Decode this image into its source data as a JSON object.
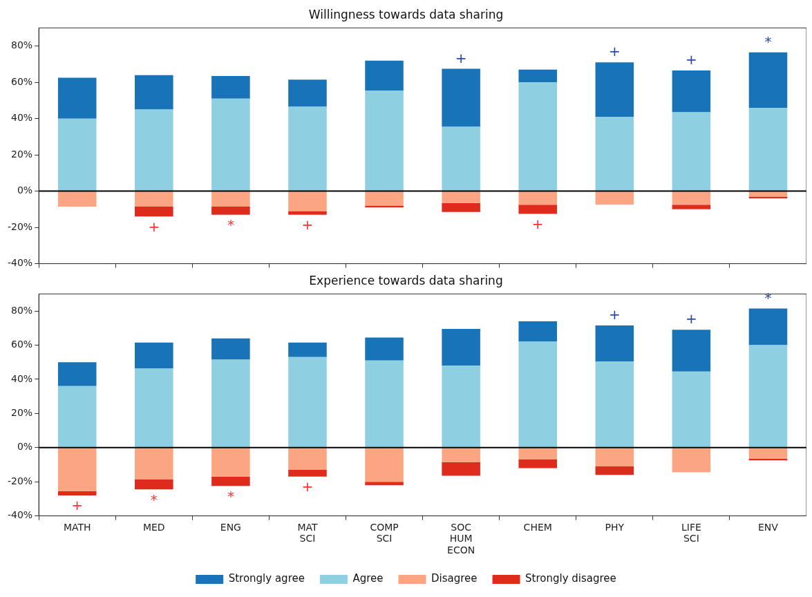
{
  "chart_data": [
    {
      "type": "bar",
      "title": "Willingness towards data sharing",
      "categories": [
        "MATH",
        "MED",
        "ENG",
        "MAT SCI",
        "COMP SCI",
        "SOC HUM ECON",
        "CHEM",
        "PHY",
        "LIFE SCI",
        "ENV"
      ],
      "stacked": true,
      "grid": false,
      "legend": false,
      "tick_labels": "y",
      "ylim": [
        -40,
        90
      ],
      "yticks": [
        {
          "value": -40,
          "label": "-40%"
        },
        {
          "value": -20,
          "label": "-20%"
        },
        {
          "value": 0,
          "label": "0%"
        },
        {
          "value": 20,
          "label": "20%"
        },
        {
          "value": 40,
          "label": "40%"
        },
        {
          "value": 60,
          "label": "60%"
        },
        {
          "value": 80,
          "label": "80%"
        }
      ],
      "series": [
        {
          "color": "#8ecfe2",
          "values": [
            40,
            45,
            51,
            46.5,
            55.5,
            35.5,
            60,
            41,
            43.5,
            46
          ]
        },
        {
          "color": "#1873b7",
          "values": [
            22.5,
            19,
            12.5,
            15,
            16.5,
            32,
            7,
            30,
            23,
            30.5
          ]
        },
        {
          "color": "#fca582",
          "values": [
            -8.5,
            -8.5,
            -8.5,
            -11,
            -8,
            -6.5,
            -7.5,
            -7.5,
            -7.5,
            -3
          ]
        },
        {
          "color": "#de2b1c",
          "values": [
            0,
            -5.5,
            -4.5,
            -2,
            -1,
            -5,
            -5,
            0,
            -2.5,
            -1
          ]
        }
      ],
      "ref_lines": [
        {
          "axis": "y",
          "value": 0,
          "color": "#000000"
        }
      ],
      "annotations": [
        {
          "text": "+",
          "x": "MED",
          "y": -14
        },
        {
          "text": "*",
          "x": "ENG",
          "y": -13
        },
        {
          "text": "+",
          "x": "MAT SCI",
          "y": -13
        },
        {
          "text": "+",
          "x": "SOC HUM ECON",
          "y": 67.5
        },
        {
          "text": "+",
          "x": "CHEM",
          "y": -12.5
        },
        {
          "text": "+",
          "x": "PHY",
          "y": 71
        },
        {
          "text": "+",
          "x": "LIFE SCI",
          "y": 66.5
        },
        {
          "text": "*",
          "x": "ENV",
          "y": 76.5
        }
      ]
    },
    {
      "type": "bar",
      "title": "Experience towards data sharing",
      "categories": [
        "MATH",
        "MED",
        "ENG",
        "MAT SCI",
        "COMP SCI",
        "SOC HUM ECON",
        "CHEM",
        "PHY",
        "LIFE SCI",
        "ENV"
      ],
      "stacked": true,
      "grid": false,
      "legend": "bottom",
      "ylim": [
        -40,
        90
      ],
      "yticks": [
        {
          "value": -40,
          "label": "-40%"
        },
        {
          "value": -20,
          "label": "-20%"
        },
        {
          "value": 0,
          "label": "0%"
        },
        {
          "value": 20,
          "label": "20%"
        },
        {
          "value": 40,
          "label": "40%"
        },
        {
          "value": 60,
          "label": "60%"
        },
        {
          "value": 80,
          "label": "80%"
        }
      ],
      "series": [
        {
          "name": "Agree",
          "color": "#8ecfe2",
          "values": [
            36,
            46.5,
            51.5,
            53,
            51,
            48,
            62,
            50.5,
            44.5,
            60
          ]
        },
        {
          "name": "Strongly agree",
          "color": "#1873b7",
          "values": [
            14,
            15,
            12.5,
            8.5,
            13.5,
            21.5,
            12,
            21,
            24.5,
            21.5
          ]
        },
        {
          "name": "Disagree",
          "color": "#fca582",
          "values": [
            -25.5,
            -18.5,
            -17,
            -13,
            -20,
            -8.5,
            -7,
            -11,
            -14.5,
            -6.5
          ]
        },
        {
          "name": "Strongly disagree",
          "color": "#de2b1c",
          "values": [
            -2.5,
            -6,
            -5.5,
            -4,
            -2,
            -8,
            -5,
            -5,
            0,
            -1
          ]
        }
      ],
      "ref_lines": [
        {
          "axis": "y",
          "value": 0,
          "color": "#000000"
        }
      ],
      "annotations": [
        {
          "text": "+",
          "x": "MATH",
          "y": -28
        },
        {
          "text": "*",
          "x": "MED",
          "y": -24.5
        },
        {
          "text": "*",
          "x": "ENG",
          "y": -22.5
        },
        {
          "text": "+",
          "x": "MAT SCI",
          "y": -17
        },
        {
          "text": "+",
          "x": "PHY",
          "y": 71.5
        },
        {
          "text": "+",
          "x": "LIFE SCI",
          "y": 69
        },
        {
          "text": "*",
          "x": "ENV",
          "y": 81.5
        }
      ]
    }
  ]
}
